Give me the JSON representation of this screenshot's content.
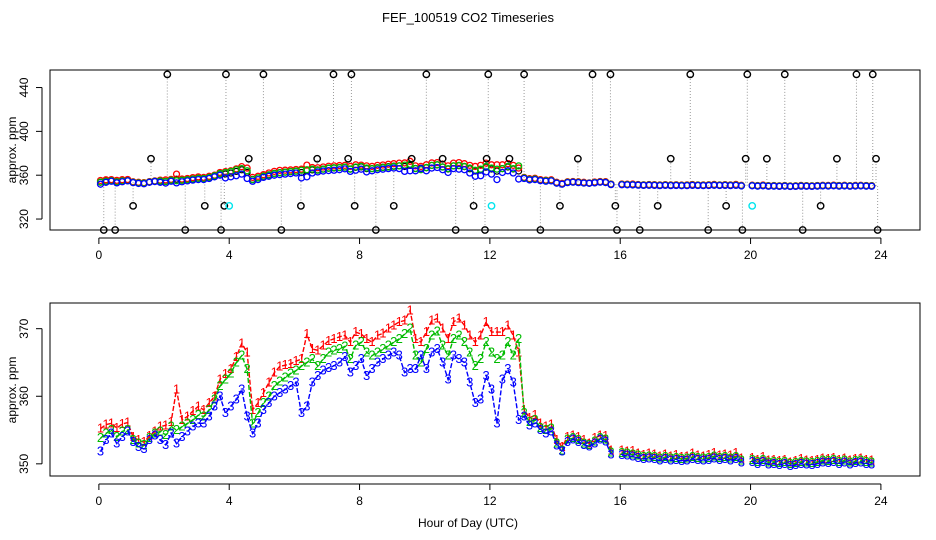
{
  "title": "FEF_100519  CO2 Timeseries",
  "xlabel": "Hour of Day (UTC)",
  "colors": {
    "black": "#000000",
    "red": "#ff0000",
    "green": "#00bb00",
    "blue": "#0000ff",
    "cyan": "#00e5ee",
    "connector": "#9a9a9a"
  },
  "chart_data": [
    {
      "type": "scatter",
      "title": "FEF_100519  CO2 Timeseries",
      "xlabel": "",
      "ylabel": "approx. ppm",
      "xlim": [
        -1.5,
        25.2
      ],
      "ylim": [
        310,
        456
      ],
      "xticks": [
        0,
        4,
        8,
        12,
        16,
        20,
        24
      ],
      "yticks": [
        320,
        360,
        400,
        440
      ],
      "spike_x": [
        0.15,
        0.5,
        1.05,
        1.6,
        2.1,
        2.65,
        3.25,
        3.75,
        3.85,
        3.9,
        4.6,
        5.05,
        5.6,
        6.2,
        6.7,
        7.2,
        7.65,
        7.75,
        7.85,
        8.5,
        9.05,
        9.6,
        10.05,
        10.55,
        10.95,
        11.5,
        11.85,
        11.9,
        11.95,
        12.6,
        13.05,
        13.55,
        14.15,
        14.7,
        15.15,
        15.7,
        15.85,
        15.9,
        16.6,
        17.15,
        17.55,
        18.15,
        18.7,
        19.25,
        19.75,
        19.85,
        19.9,
        20.5,
        21.05,
        21.6,
        22.15,
        22.65,
        23.25,
        23.75,
        23.85,
        23.9
      ],
      "spike_y": [
        310,
        310,
        332,
        375,
        452,
        310,
        332,
        310,
        332,
        452,
        375,
        452,
        310,
        332,
        375,
        452,
        375,
        452,
        332,
        310,
        332,
        375,
        452,
        375,
        310,
        332,
        310,
        375,
        452,
        375,
        452,
        310,
        332,
        375,
        452,
        452,
        332,
        310,
        310,
        332,
        375,
        452,
        310,
        332,
        310,
        375,
        452,
        375,
        452,
        310,
        332,
        375,
        452,
        452,
        375,
        310
      ],
      "cyan_x": [
        4.0,
        12.05,
        20.05
      ],
      "cyan_y": [
        332,
        332,
        332
      ],
      "series_note": "black/red/green/blue circles are 10-min averages of the three sample lines (same data as lower panel)"
    },
    {
      "type": "line",
      "title": "",
      "xlabel": "Hour of Day (UTC)",
      "ylabel": "approx. ppm",
      "xlim": [
        -1.5,
        25.2
      ],
      "ylim": [
        348.2,
        373.8
      ],
      "xticks": [
        0,
        4,
        8,
        12,
        16,
        20,
        24
      ],
      "yticks": [
        350,
        360,
        370
      ],
      "x_start": 0.05,
      "x_step": 0.166667,
      "gaps": [
        [
          15.85,
          16.0
        ],
        [
          19.85,
          20.0
        ]
      ],
      "series": [
        {
          "name": "1",
          "color": "#ff0000",
          "values": [
            355.2,
            355.8,
            356.0,
            355.3,
            355.9,
            356.1,
            354.0,
            353.5,
            353.2,
            354.1,
            354.8,
            355.5,
            355.7,
            356.2,
            361.0,
            356.5,
            357.0,
            357.8,
            358.5,
            358.0,
            359.0,
            360.0,
            362.5,
            363.3,
            364.0,
            365.8,
            367.8,
            366.5,
            358.0,
            359.0,
            360.5,
            362.0,
            363.5,
            364.4,
            364.6,
            364.8,
            365.2,
            365.5,
            369.2,
            367.0,
            366.8,
            367.5,
            368.2,
            368.5,
            368.8,
            369.0,
            368.0,
            369.5,
            369.2,
            368.5,
            368.0,
            369.0,
            369.3,
            370.0,
            370.5,
            371.0,
            371.2,
            372.7,
            368.5,
            368.0,
            369.5,
            371.2,
            371.5,
            370.0,
            368.5,
            371.0,
            371.5,
            370.5,
            369.0,
            368.0,
            369.0,
            371.0,
            369.5,
            369.5,
            369.5,
            370.5,
            369.0,
            366.5,
            358.0,
            356.8,
            357.2,
            356.0,
            355.5,
            355.8,
            353.5,
            352.5,
            354.0,
            354.2,
            354.0,
            353.5,
            353.0,
            353.8,
            354.2,
            354.1,
            352.0,
            352.2,
            352.0,
            351.8,
            351.9,
            351.5,
            351.3,
            351.5,
            351.4,
            351.1,
            351.4,
            351.1,
            351.3,
            351.0,
            351.1,
            351.5,
            351.2,
            351.1,
            351.3,
            351.6,
            351.2,
            351.4,
            351.2,
            351.6,
            350.8,
            350.7,
            350.9,
            350.6,
            351.0,
            350.5,
            350.6,
            350.4,
            350.6,
            350.2,
            350.4,
            350.7,
            350.5,
            350.4,
            350.6,
            350.8,
            350.7,
            350.9,
            350.6,
            350.8,
            350.5,
            350.7,
            350.8,
            350.6,
            350.5
          ]
        },
        {
          "name": "2",
          "color": "#00bb00",
          "values": [
            353.8,
            354.5,
            355.0,
            354.0,
            354.8,
            355.0,
            353.5,
            353.0,
            352.8,
            353.8,
            354.5,
            354.8,
            354.3,
            355.5,
            355.0,
            355.5,
            356.0,
            356.5,
            357.2,
            357.0,
            358.0,
            359.5,
            361.5,
            362.5,
            363.4,
            365.0,
            366.0,
            364.0,
            356.0,
            357.5,
            359.0,
            360.0,
            361.5,
            362.2,
            362.8,
            363.4,
            363.8,
            364.5,
            365.0,
            365.5,
            364.5,
            365.5,
            366.5,
            366.8,
            367.0,
            367.4,
            365.5,
            367.5,
            368.0,
            366.5,
            366.0,
            366.5,
            367.0,
            367.5,
            368.0,
            368.5,
            369.2,
            370.0,
            366.0,
            365.0,
            367.0,
            369.0,
            369.6,
            367.5,
            366.0,
            368.5,
            369.0,
            368.0,
            366.5,
            364.5,
            365.5,
            368.0,
            366.5,
            365.5,
            366.0,
            368.0,
            366.0,
            368.5,
            357.5,
            356.2,
            356.5,
            355.3,
            355.0,
            355.2,
            353.0,
            352.0,
            353.6,
            353.8,
            353.5,
            353.0,
            352.8,
            353.3,
            353.8,
            353.6,
            351.7,
            351.8,
            351.6,
            351.5,
            351.4,
            351.2,
            351.0,
            351.1,
            351.0,
            350.8,
            351.0,
            350.8,
            350.9,
            350.7,
            350.8,
            351.0,
            350.9,
            350.8,
            350.9,
            351.1,
            350.9,
            351.0,
            350.8,
            351.0,
            350.5,
            350.4,
            350.6,
            350.3,
            350.6,
            350.2,
            350.3,
            350.1,
            350.3,
            350.0,
            350.1,
            350.3,
            350.2,
            350.1,
            350.3,
            350.5,
            350.4,
            350.6,
            350.3,
            350.5,
            350.2,
            350.4,
            350.5,
            350.3,
            350.2
          ]
        },
        {
          "name": "3",
          "color": "#0000ff",
          "values": [
            351.8,
            353.5,
            354.5,
            353.0,
            354.0,
            354.8,
            353.2,
            352.5,
            352.2,
            353.5,
            354.2,
            353.5,
            352.8,
            354.5,
            353.0,
            354.0,
            354.8,
            355.5,
            356.0,
            356.0,
            357.0,
            358.5,
            360.0,
            357.5,
            358.5,
            359.5,
            361.0,
            357.0,
            354.5,
            356.0,
            358.0,
            359.0,
            360.0,
            360.5,
            361.0,
            361.5,
            362.0,
            357.5,
            358.5,
            362.0,
            363.0,
            363.8,
            364.2,
            364.5,
            365.0,
            365.8,
            363.5,
            364.5,
            365.5,
            363.0,
            364.0,
            365.0,
            365.5,
            366.0,
            366.5,
            366.0,
            363.5,
            364.0,
            364.0,
            366.0,
            364.0,
            366.5,
            367.0,
            365.0,
            362.5,
            366.0,
            365.5,
            365.0,
            362.0,
            359.0,
            359.5,
            363.0,
            361.0,
            356.0,
            362.5,
            364.0,
            362.0,
            356.5,
            357.0,
            355.7,
            356.0,
            355.0,
            354.5,
            354.8,
            352.7,
            351.8,
            353.2,
            353.6,
            353.2,
            352.8,
            352.6,
            353.0,
            353.6,
            353.3,
            351.4,
            351.5,
            351.3,
            351.2,
            351.1,
            350.9,
            350.7,
            350.8,
            350.7,
            350.5,
            350.7,
            350.5,
            350.6,
            350.4,
            350.5,
            350.7,
            350.6,
            350.5,
            350.6,
            350.8,
            350.6,
            350.7,
            350.5,
            350.7,
            350.2,
            350.1,
            350.3,
            350.0,
            350.3,
            349.9,
            350.0,
            349.8,
            350.0,
            349.7,
            349.8,
            350.0,
            349.9,
            349.8,
            350.0,
            350.2,
            350.1,
            350.3,
            350.0,
            350.2,
            349.9,
            350.1,
            350.2,
            350.0,
            349.9
          ]
        }
      ]
    }
  ]
}
